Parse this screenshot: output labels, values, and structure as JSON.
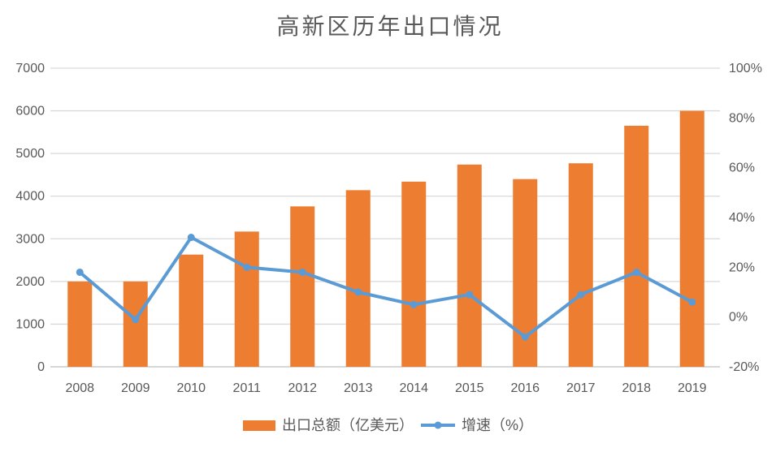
{
  "chart_data": {
    "type": "bar+line",
    "title": "高新区历年出口情况",
    "categories": [
      "2008",
      "2009",
      "2010",
      "2011",
      "2012",
      "2013",
      "2014",
      "2015",
      "2016",
      "2017",
      "2018",
      "2019"
    ],
    "series": [
      {
        "name": "出口总额（亿美元）",
        "type": "bar",
        "axis": "left",
        "color": "#ED7D31",
        "values": [
          2000,
          2000,
          2630,
          3170,
          3760,
          4140,
          4340,
          4740,
          4400,
          4770,
          5650,
          6000
        ]
      },
      {
        "name": "增速（%）",
        "type": "line",
        "axis": "right",
        "color": "#5B9BD5",
        "values": [
          18,
          -1,
          32,
          20,
          18,
          10,
          5,
          9,
          -8,
          9,
          18,
          6
        ]
      }
    ],
    "left_axis": {
      "min": 0,
      "max": 7000,
      "step": 1000,
      "tick_labels": [
        "0",
        "1000",
        "2000",
        "3000",
        "4000",
        "5000",
        "6000",
        "7000"
      ]
    },
    "right_axis": {
      "min": -20,
      "max": 100,
      "step": 20,
      "tick_labels": [
        "-20%",
        "0%",
        "20%",
        "40%",
        "60%",
        "80%",
        "100%"
      ]
    },
    "grid": "horizontal",
    "legend_position": "bottom",
    "colors": {
      "grid_line": "#D9D9D9",
      "axis_line": "#BFBFBF",
      "tick_text": "#595959",
      "title_text": "#595959",
      "background": "#FFFFFF"
    }
  }
}
